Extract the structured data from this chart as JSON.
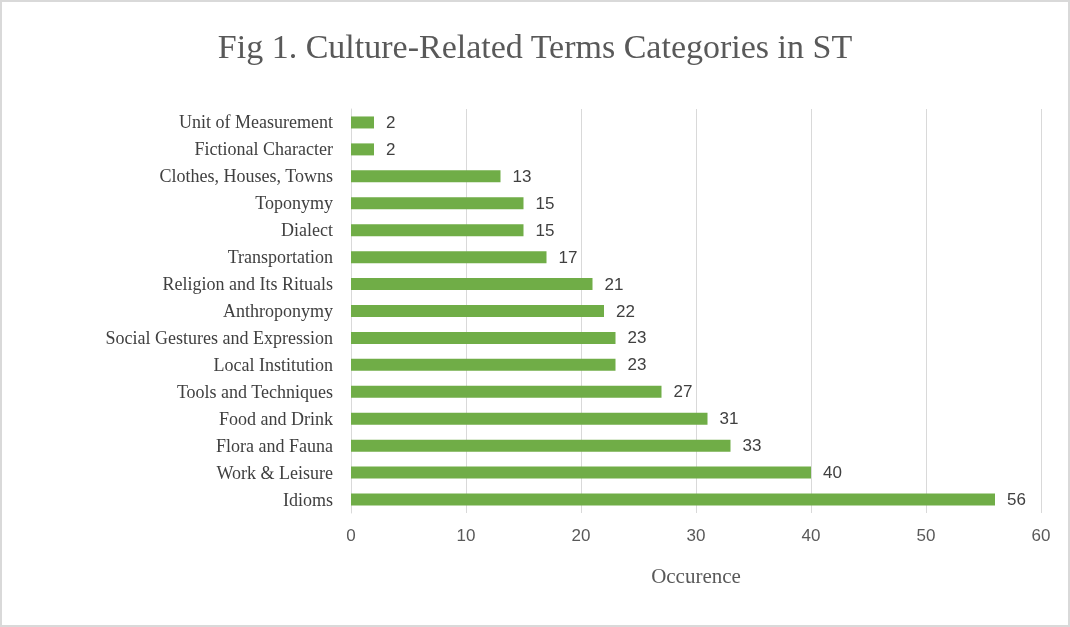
{
  "chart_data": {
    "type": "bar",
    "orientation": "horizontal",
    "title": "Fig 1. Culture-Related Terms Categories in ST",
    "xlabel": "Occurence",
    "categories": [
      "Unit of Measurement",
      "Fictional Character",
      "Clothes, Houses, Towns",
      "Toponymy",
      "Dialect",
      "Transportation",
      "Religion and Its Rituals",
      "Anthroponymy",
      "Social Gestures and Expression",
      "Local Institution",
      "Tools and Techniques",
      "Food and Drink",
      "Flora and Fauna",
      "Work & Leisure",
      "Idioms"
    ],
    "values": [
      2,
      2,
      13,
      15,
      15,
      17,
      21,
      22,
      23,
      23,
      27,
      31,
      33,
      40,
      56
    ],
    "color": "#70ad47",
    "xlim": [
      0,
      60
    ],
    "xticks": [
      0,
      10,
      20,
      30,
      40,
      50,
      60
    ],
    "grid": "x",
    "data_labels": true
  }
}
